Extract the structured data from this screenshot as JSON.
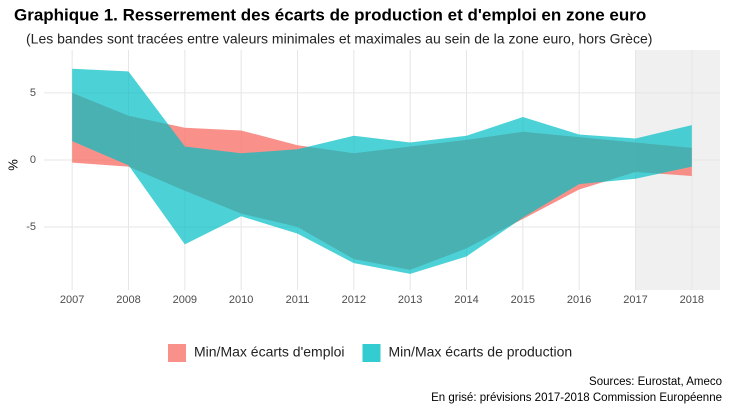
{
  "chart_data": {
    "type": "ribbon",
    "title": "Graphique 1. Resserrement des écarts de production et d'emploi en zone euro",
    "subtitle": "(Les bandes sont tracées entre valeurs minimales et maximales au sein de la zone euro, hors Grèce)",
    "y_label": "%",
    "x": [
      2007,
      2008,
      2009,
      2010,
      2011,
      2012,
      2013,
      2014,
      2015,
      2016,
      2017,
      2018
    ],
    "series": [
      {
        "name": "Min/Max écarts d'emploi",
        "color": "#F8766D",
        "max": [
          5.0,
          3.3,
          2.4,
          2.2,
          1.1,
          0.5,
          1.0,
          1.5,
          2.1,
          1.7,
          1.3,
          0.9
        ],
        "min": [
          -0.2,
          -0.5,
          -2.3,
          -4.0,
          -5.0,
          -7.4,
          -8.2,
          -6.6,
          -4.4,
          -2.2,
          -0.9,
          -1.2
        ]
      },
      {
        "name": "Min/Max écarts de production",
        "color": "#00BFC4",
        "max": [
          6.8,
          6.6,
          1.0,
          0.5,
          0.8,
          1.8,
          1.3,
          1.8,
          3.2,
          1.9,
          1.6,
          2.6
        ],
        "min": [
          1.4,
          -0.4,
          -6.3,
          -4.2,
          -5.5,
          -7.7,
          -8.5,
          -7.2,
          -4.3,
          -1.8,
          -1.4,
          -0.5
        ]
      }
    ],
    "xlim": [
      2006.5,
      2018.5
    ],
    "ylim": [
      -9.7,
      8.2
    ],
    "xticks": [
      2007,
      2008,
      2009,
      2010,
      2011,
      2012,
      2013,
      2014,
      2015,
      2016,
      2017,
      2018
    ],
    "yticks": [
      -5,
      0,
      5
    ],
    "grid": true,
    "shaded_range": [
      2017,
      2018.5
    ],
    "legend_position": "bottom",
    "sources": [
      "Sources: Eurostat, Ameco",
      "En grisé: prévisions 2017-2018 Commission Européenne"
    ]
  }
}
